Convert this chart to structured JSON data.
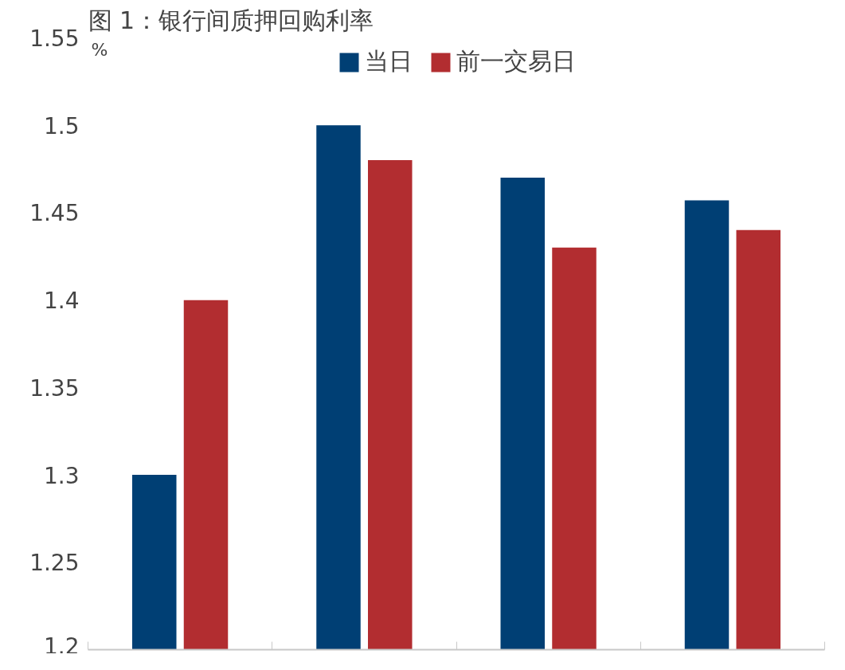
{
  "chart_data": {
    "type": "bar",
    "title": "图 1：银行间质押回购利率",
    "ylabel": "%",
    "categories": [
      null,
      null,
      null,
      null
    ],
    "series": [
      {
        "name": "当日",
        "color": "#003f74",
        "values": [
          1.3,
          1.5,
          1.47,
          1.457
        ]
      },
      {
        "name": "前一交易日",
        "color": "#b22d30",
        "values": [
          1.4,
          1.48,
          1.43,
          1.44
        ]
      }
    ],
    "ylim": [
      1.2,
      1.55
    ],
    "yticks": [
      1.2,
      1.25,
      1.3,
      1.35,
      1.4,
      1.45,
      1.5,
      1.55
    ],
    "legend": "top",
    "grid": false
  }
}
